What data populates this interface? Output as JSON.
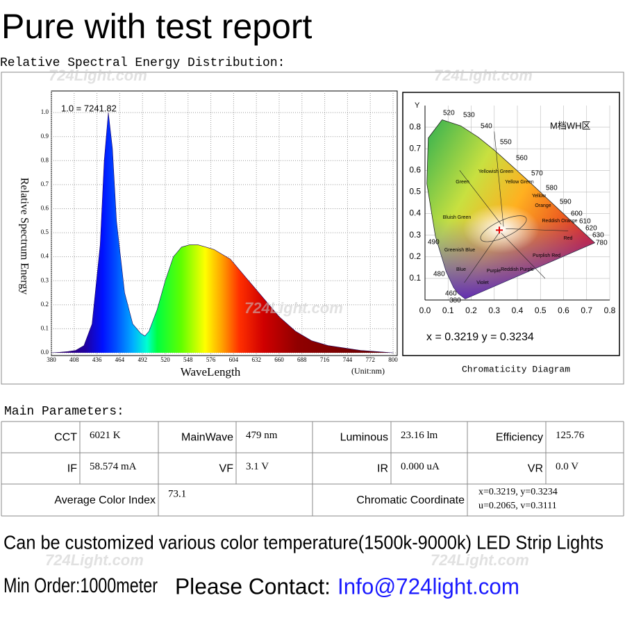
{
  "title": "Pure with test report",
  "spectrum_heading": "Relative Spectral Energy Distribution:",
  "watermark": "724Light.com",
  "chart_data": [
    {
      "type": "area",
      "note": "1.0 = 7241.82",
      "y_label": "Relative Spectrum Energy",
      "x_label": "WaveLength",
      "unit_label": "(Unit:nm)",
      "x": [
        380,
        390,
        400,
        410,
        420,
        430,
        440,
        445,
        450,
        455,
        460,
        470,
        480,
        490,
        495,
        500,
        510,
        520,
        530,
        540,
        550,
        560,
        570,
        580,
        590,
        600,
        610,
        620,
        630,
        640,
        650,
        660,
        670,
        680,
        690,
        700,
        720,
        740,
        760,
        780,
        800
      ],
      "values": [
        0,
        0.002,
        0.005,
        0.01,
        0.03,
        0.12,
        0.45,
        0.8,
        1.0,
        0.85,
        0.55,
        0.25,
        0.12,
        0.08,
        0.07,
        0.09,
        0.18,
        0.3,
        0.4,
        0.44,
        0.45,
        0.45,
        0.44,
        0.43,
        0.41,
        0.39,
        0.35,
        0.31,
        0.27,
        0.23,
        0.19,
        0.15,
        0.12,
        0.09,
        0.07,
        0.05,
        0.03,
        0.02,
        0.01,
        0.005,
        0
      ],
      "xlim": [
        380,
        800
      ],
      "ylim": [
        0,
        1.09
      ],
      "xticks": [
        380,
        408,
        436,
        464,
        492,
        520,
        548,
        576,
        604,
        632,
        660,
        688,
        716,
        744,
        772,
        800
      ],
      "yticks": [
        {
          "value": 0,
          "label": "0.0"
        },
        0.1,
        0.2,
        0.3,
        0.4,
        0.5,
        0.6,
        0.7,
        0.8,
        0.9,
        {
          "value": 1,
          "label": "1.0"
        }
      ],
      "grid": true
    },
    {
      "type": "scatter",
      "title": "Chromaticity Diagram",
      "y_label": "Y",
      "annotation": "M档WH区",
      "point_label": "x = 0.3219   y = 0.3234",
      "x": [
        0.3219
      ],
      "values": [
        0.3234
      ],
      "color": "#e00000",
      "xlim": [
        0,
        0.8
      ],
      "ylim": [
        0,
        0.9
      ],
      "xticks": [
        {
          "value": 0,
          "label": "0.0"
        },
        0.1,
        0.2,
        0.3,
        0.4,
        0.5,
        0.6,
        0.7,
        0.8
      ],
      "yticks": [
        0.1,
        0.2,
        0.3,
        0.4,
        0.5,
        0.6,
        0.7,
        0.8
      ],
      "wavelength_labels": [
        "520",
        "530",
        "540",
        "550",
        "560",
        "570",
        "580",
        "590",
        "600",
        "610",
        "620",
        "630",
        "780",
        "490",
        "480",
        "460",
        "380"
      ],
      "region_labels": [
        "Green",
        "Yellowish Green",
        "Yellow Green",
        "Yellow",
        "Orange",
        "Reddish Orange",
        "Red",
        "Purplish Red",
        "Reddish Purple",
        "Purple",
        "Violet",
        "Blue",
        "Greenish Blue",
        "Bluish Green"
      ]
    }
  ],
  "parameters": {
    "heading": "Main Parameters:",
    "rows": [
      [
        "CCT",
        "6021 K",
        "MainWave",
        "479 nm",
        "Luminous",
        "23.16 lm",
        "Efficiency",
        "125.76"
      ],
      [
        "IF",
        "58.574 mA",
        "VF",
        "3.1 V",
        "IR",
        "0.000 uA",
        "VR",
        "0.0 V"
      ],
      [
        "Average Color Index",
        "73.1",
        "Chromatic Coordinate",
        [
          "x=0.3219,  y=0.3234",
          "u=0.2065,  v=0.3111"
        ]
      ]
    ]
  },
  "footer": {
    "custom": "Can be customized various color temperature(1500k-9000k) LED Strip Lights",
    "min_order": "Min Order:1000meter",
    "contact_label": "Please Contact:",
    "email": "Info@724light.com"
  }
}
